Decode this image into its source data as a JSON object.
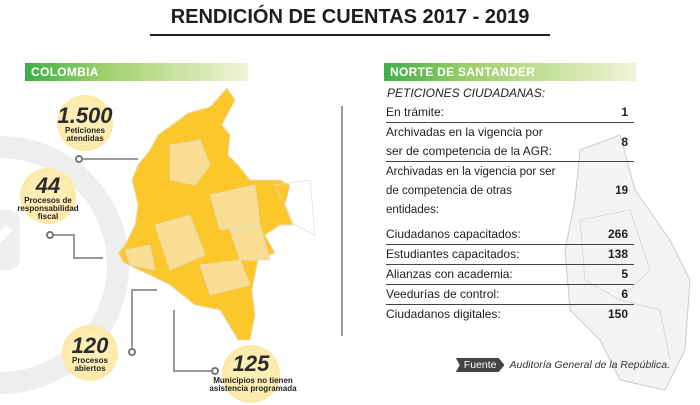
{
  "title": "RENDICIÓN DE CUENTAS 2017 - 2019",
  "colombia": {
    "label": "COLOMBIA",
    "stats": [
      {
        "value": "1.500",
        "caption": "Peticiones atendidas"
      },
      {
        "value": "44",
        "caption": "Procesos de responsabilidad fiscal"
      },
      {
        "value": "120",
        "caption": "Procesos abiertos"
      },
      {
        "value": "125",
        "caption": "Municipios no tienen asistencia programada"
      }
    ]
  },
  "norte": {
    "label": "NORTE DE SANTANDER",
    "subtitle": "PETICIONES CIUDADANAS:",
    "peticiones": [
      {
        "label": "En trámite:",
        "value": "1"
      },
      {
        "label": "Archivadas en la vigencia por ser de competencia de la AGR:",
        "value": "8"
      },
      {
        "label": "Archivadas en la vigencia por ser de competencia de otras entidades:",
        "value": "19"
      }
    ],
    "otros": [
      {
        "label": "Ciudadanos capacitados:",
        "value": "266"
      },
      {
        "label": "Estudiantes capacitados:",
        "value": "138"
      },
      {
        "label": "Alianzas con academia:",
        "value": "5"
      },
      {
        "label": "Veedurías de control:",
        "value": "6"
      },
      {
        "label": "Ciudadanos digitales:",
        "value": "150"
      }
    ]
  },
  "source": {
    "tag": "Fuente",
    "text": "Auditoría General de la República."
  },
  "colors": {
    "accent": "#3fae49",
    "map": "#fcc72a",
    "map_light": "#f8dd92"
  }
}
